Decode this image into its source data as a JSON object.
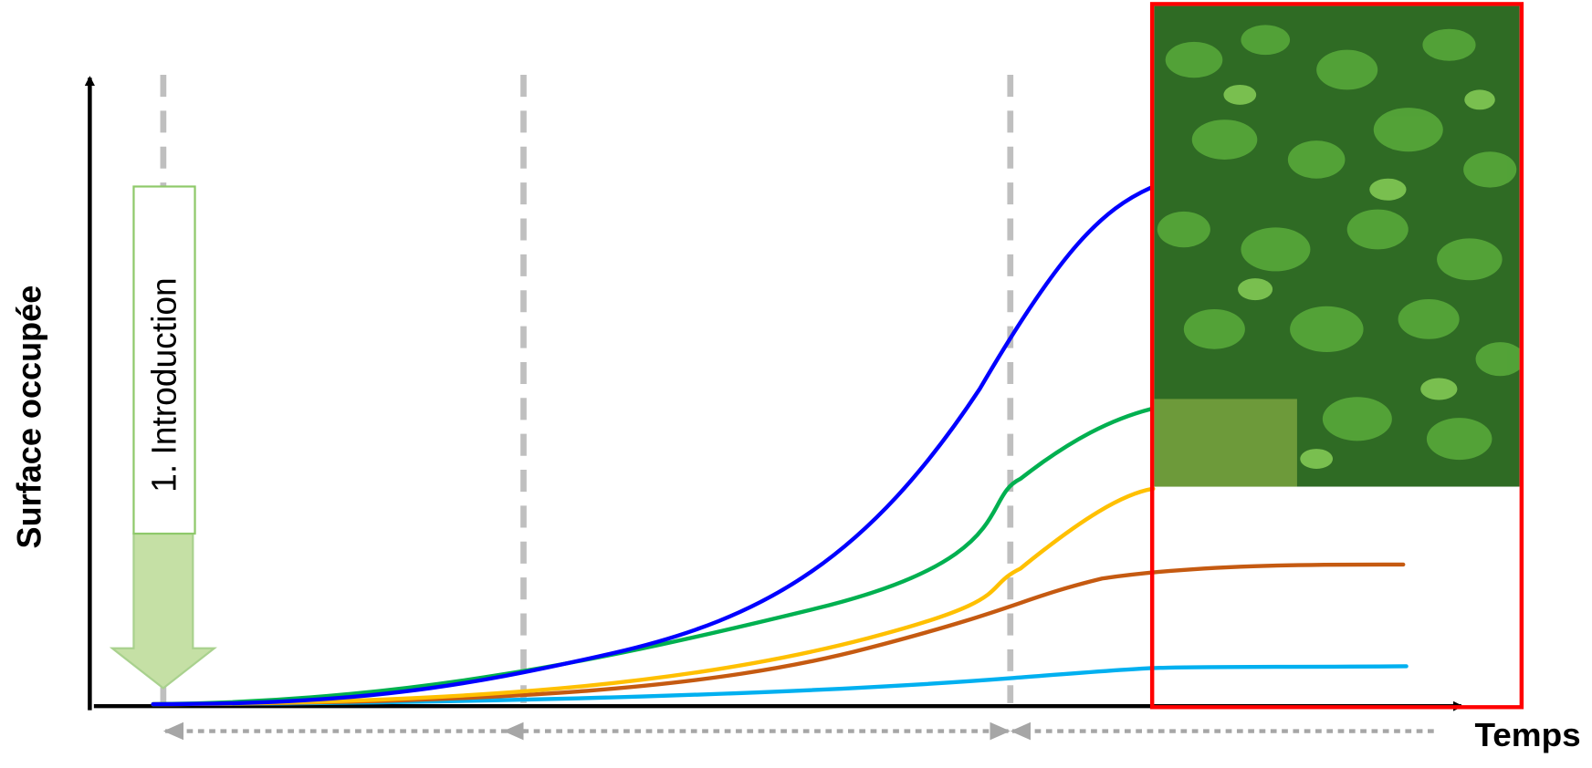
{
  "axes": {
    "y_label": "Surface occupée",
    "x_label": "Temps"
  },
  "phases": [
    {
      "label": "1. Introduction"
    }
  ]
}
